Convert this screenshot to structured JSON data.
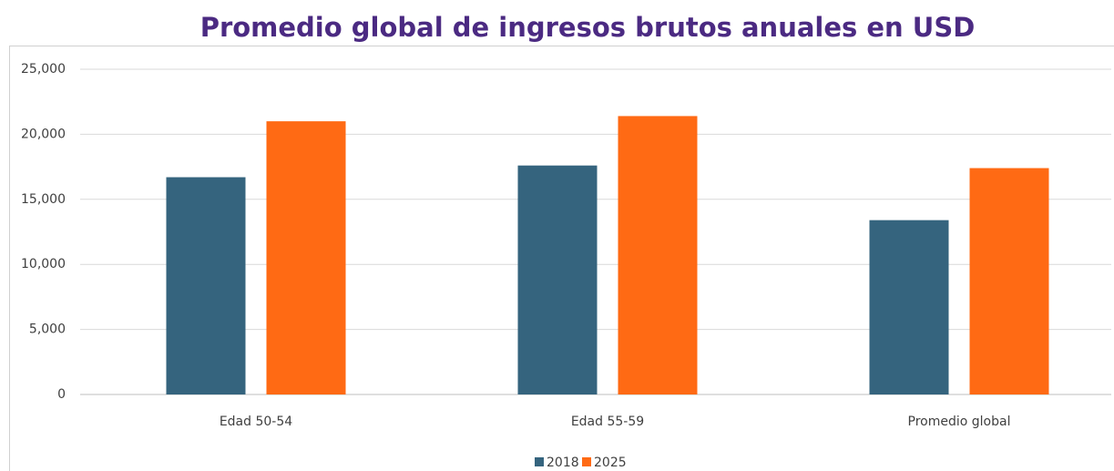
{
  "chart_data": {
    "type": "bar",
    "title": "Promedio global de ingresos brutos anuales en USD",
    "categories": [
      "Edad 50-54",
      "Edad 55-59",
      "Promedio global"
    ],
    "series": [
      {
        "name": "2018",
        "color": "#35647e",
        "values": [
          16700,
          17600,
          13400
        ]
      },
      {
        "name": "2025",
        "color": "#ff6a14",
        "values": [
          21000,
          21400,
          17400
        ]
      }
    ],
    "ylim": [
      0,
      25000
    ],
    "yticks": [
      0,
      {
        "value": 5000,
        "label": "5,000"
      },
      {
        "value": 10000,
        "label": "10,000"
      },
      {
        "value": 15000,
        "label": "15,000"
      },
      {
        "value": 20000,
        "label": "20,000"
      },
      {
        "value": 25000,
        "label": "25,000"
      }
    ],
    "grid": true,
    "legend": "bottom"
  }
}
